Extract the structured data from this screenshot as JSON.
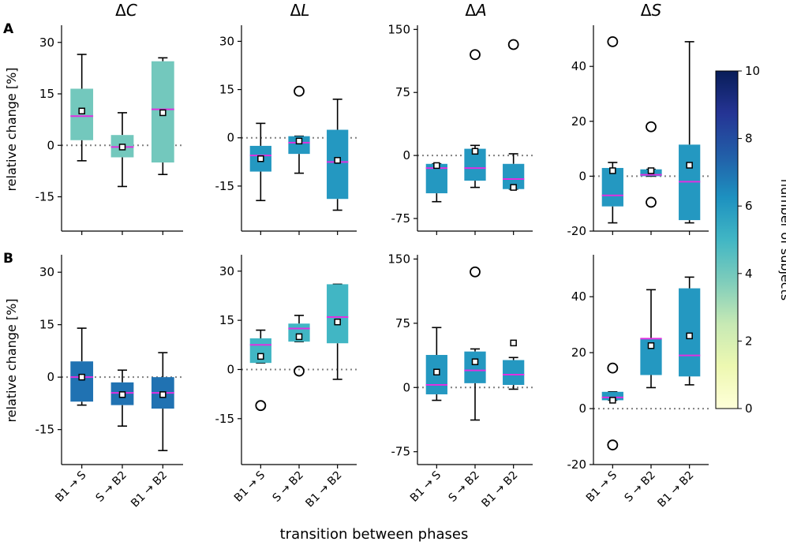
{
  "figure": {
    "xlabel": "transition between phases",
    "ylabel": "relative change [%]",
    "row_labels": [
      "A",
      "B"
    ],
    "column_titles": [
      {
        "delta": "Δ",
        "var": "C"
      },
      {
        "delta": "Δ",
        "var": "L"
      },
      {
        "delta": "Δ",
        "var": "A"
      },
      {
        "delta": "Δ",
        "var": "S"
      }
    ],
    "categories": [
      "B1 → S",
      "S → B2",
      "B1 → B2"
    ],
    "colorbar": {
      "label": "number of subjects",
      "min": 0,
      "max": 10,
      "ticks": [
        0,
        2,
        4,
        6,
        8,
        10
      ],
      "colormap": "YlGnBu",
      "stops": [
        "#ffffd9",
        "#edf8b1",
        "#c7e9b4",
        "#7fcdbb",
        "#41b6c4",
        "#1d91c0",
        "#225ea8",
        "#253494",
        "#081d58"
      ]
    },
    "colors": {
      "median": "#e030e0",
      "reference": "#808080",
      "whisker": "#000000",
      "mean_marker_fill": "#ffffff"
    }
  },
  "chart_data": [
    {
      "type": "box",
      "row": "A",
      "title": "ΔC",
      "ylim": [
        -25,
        35
      ],
      "yticks": [
        -15,
        0,
        15,
        30
      ],
      "reference": 0,
      "boxes": [
        {
          "category": "B1 → S",
          "n": 4,
          "whislo": -4.5,
          "q1": 1.5,
          "median": 8.5,
          "q3": 16.5,
          "whishi": 26.5,
          "mean": 10,
          "fliers": []
        },
        {
          "category": "S → B2",
          "n": 4,
          "whislo": -12,
          "q1": -3.5,
          "median": -0.5,
          "q3": 3,
          "whishi": 9.5,
          "mean": -0.5,
          "fliers": []
        },
        {
          "category": "B1 → B2",
          "n": 4,
          "whislo": -8.5,
          "q1": -5,
          "median": 10.5,
          "q3": 24.5,
          "whishi": 25.5,
          "mean": 9.5,
          "fliers": []
        }
      ]
    },
    {
      "type": "box",
      "row": "A",
      "title": "ΔL",
      "ylim": [
        -29,
        35
      ],
      "yticks": [
        -15,
        0,
        15,
        30
      ],
      "reference": 0,
      "boxes": [
        {
          "category": "B1 → S",
          "n": 6,
          "whislo": -19.5,
          "q1": -10.5,
          "median": -5.5,
          "q3": -2.5,
          "whishi": 4.5,
          "mean": -6.5,
          "fliers": []
        },
        {
          "category": "S → B2",
          "n": 6,
          "whislo": -11,
          "q1": -5,
          "median": -1.5,
          "q3": 0.5,
          "whishi": 0.5,
          "mean": -1,
          "fliers": [
            14.5
          ]
        },
        {
          "category": "B1 → B2",
          "n": 6,
          "whislo": -22.5,
          "q1": -19,
          "median": -7.5,
          "q3": 2.5,
          "whishi": 12,
          "mean": -7,
          "fliers": []
        }
      ]
    },
    {
      "type": "box",
      "row": "A",
      "title": "ΔA",
      "ylim": [
        -90,
        155
      ],
      "yticks": [
        -75,
        0,
        75,
        150
      ],
      "reference": 0,
      "boxes": [
        {
          "category": "B1 → S",
          "n": 6,
          "whislo": -55,
          "q1": -45,
          "median": -15,
          "q3": -10,
          "whishi": -10,
          "mean": -12,
          "fliers": []
        },
        {
          "category": "S → B2",
          "n": 6,
          "whislo": -38,
          "q1": -30,
          "median": -15,
          "q3": 8,
          "whishi": 12,
          "mean": 5,
          "fliers": [
            120
          ]
        },
        {
          "category": "B1 → B2",
          "n": 6,
          "whislo": -40,
          "q1": -40,
          "median": -28,
          "q3": -10,
          "whishi": 2,
          "mean": -38,
          "fliers": [
            132
          ]
        }
      ]
    },
    {
      "type": "box",
      "row": "A",
      "title": "ΔS",
      "ylim": [
        -20,
        55
      ],
      "yticks": [
        -20,
        0,
        20,
        40
      ],
      "reference": 0,
      "boxes": [
        {
          "category": "B1 → S",
          "n": 6,
          "whislo": -17,
          "q1": -11,
          "median": -7,
          "q3": 3,
          "whishi": 5,
          "mean": 2,
          "fliers": [
            49
          ]
        },
        {
          "category": "S → B2",
          "n": 6,
          "whislo": 0,
          "q1": 0,
          "median": 0.5,
          "q3": 2.5,
          "whishi": 2.5,
          "mean": 2,
          "fliers": [
            18,
            -9.5
          ]
        },
        {
          "category": "B1 → B2",
          "n": 6,
          "whislo": -17,
          "q1": -16,
          "median": -2,
          "q3": 11.5,
          "whishi": 49,
          "mean": 4,
          "fliers": []
        }
      ]
    },
    {
      "type": "box",
      "row": "B",
      "title": "ΔC",
      "ylim": [
        -25,
        35
      ],
      "yticks": [
        -15,
        0,
        15,
        30
      ],
      "reference": 0,
      "boxes": [
        {
          "category": "B1 → S",
          "n": 7,
          "whislo": -8,
          "q1": -7,
          "median": 0,
          "q3": 4.5,
          "whishi": 14,
          "mean": 0,
          "fliers": []
        },
        {
          "category": "S → B2",
          "n": 7,
          "whislo": -14,
          "q1": -8,
          "median": -4.5,
          "q3": -1.5,
          "whishi": 2,
          "mean": -5,
          "fliers": []
        },
        {
          "category": "B1 → B2",
          "n": 7,
          "whislo": -21,
          "q1": -9,
          "median": -4.5,
          "q3": 0,
          "whishi": 7,
          "mean": -5,
          "fliers": []
        }
      ]
    },
    {
      "type": "box",
      "row": "B",
      "title": "ΔL",
      "ylim": [
        -29,
        35
      ],
      "yticks": [
        -15,
        0,
        15,
        30
      ],
      "reference": 0,
      "boxes": [
        {
          "category": "B1 → S",
          "n": 5,
          "whislo": 2,
          "q1": 2,
          "median": 7.5,
          "q3": 9.5,
          "whishi": 12,
          "mean": 4,
          "fliers": [
            -11
          ]
        },
        {
          "category": "S → B2",
          "n": 5,
          "whislo": 8.5,
          "q1": 8.5,
          "median": 12.5,
          "q3": 14,
          "whishi": 16.5,
          "mean": 10,
          "fliers": [
            -0.5
          ]
        },
        {
          "category": "B1 → B2",
          "n": 5,
          "whislo": -3,
          "q1": 8,
          "median": 16,
          "q3": 26,
          "whishi": 26,
          "mean": 14.5,
          "fliers": []
        }
      ]
    },
    {
      "type": "box",
      "row": "B",
      "title": "ΔA",
      "ylim": [
        -90,
        155
      ],
      "yticks": [
        -75,
        0,
        75,
        150
      ],
      "reference": 0,
      "boxes": [
        {
          "category": "B1 → S",
          "n": 6,
          "whislo": -15,
          "q1": -8,
          "median": 3,
          "q3": 38,
          "whishi": 70,
          "mean": 18,
          "fliers": []
        },
        {
          "category": "S → B2",
          "n": 6,
          "whislo": -38,
          "q1": 5,
          "median": 20,
          "q3": 42,
          "whishi": 45,
          "mean": 30,
          "fliers": [
            135
          ]
        },
        {
          "category": "B1 → B2",
          "n": 6,
          "whislo": -2,
          "q1": 3,
          "median": 15,
          "q3": 32,
          "whishi": 35,
          "mean": 52,
          "fliers": []
        }
      ]
    },
    {
      "type": "box",
      "row": "B",
      "title": "ΔS",
      "ylim": [
        -20,
        55
      ],
      "yticks": [
        -20,
        0,
        20,
        40
      ],
      "reference": 0,
      "boxes": [
        {
          "category": "B1 → S",
          "n": 6,
          "whislo": 3,
          "q1": 3,
          "median": 4,
          "q3": 6,
          "whishi": 6,
          "mean": 3,
          "fliers": [
            14.5,
            -13
          ]
        },
        {
          "category": "S → B2",
          "n": 6,
          "whislo": 7.5,
          "q1": 12,
          "median": 25,
          "q3": 25,
          "whishi": 42.5,
          "mean": 22.5,
          "fliers": []
        },
        {
          "category": "B1 → B2",
          "n": 6,
          "whislo": 8.5,
          "q1": 11.5,
          "median": 19,
          "q3": 43,
          "whishi": 47,
          "mean": 26,
          "fliers": []
        }
      ]
    }
  ]
}
